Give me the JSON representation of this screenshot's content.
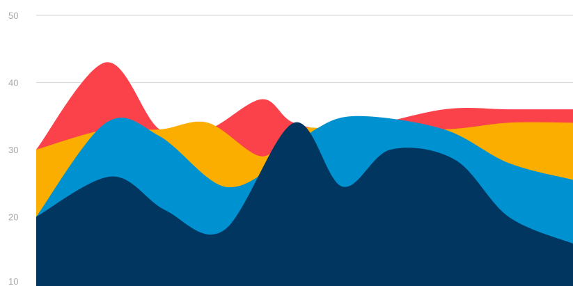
{
  "chart_data": {
    "type": "area",
    "title": "",
    "xlabel": "",
    "ylabel": "",
    "ylim": [
      10,
      50
    ],
    "yticks": [
      10,
      20,
      30,
      40,
      50
    ],
    "grid": true,
    "legend": "none",
    "series": [
      {
        "color": "#fb424b",
        "points": [
          [
            0.0,
            30
          ],
          [
            0.13,
            43
          ],
          [
            0.23,
            33
          ],
          [
            0.32,
            33
          ],
          [
            0.42,
            37.5
          ],
          [
            0.48,
            34
          ],
          [
            0.58,
            33
          ],
          [
            0.76,
            36
          ],
          [
            0.88,
            36
          ],
          [
            1.0,
            36
          ]
        ]
      },
      {
        "color": "#fcae00",
        "points": [
          [
            0.0,
            30
          ],
          [
            0.13,
            33
          ],
          [
            0.23,
            33
          ],
          [
            0.32,
            34
          ],
          [
            0.42,
            29
          ],
          [
            0.48,
            33
          ],
          [
            0.58,
            33
          ],
          [
            0.76,
            33
          ],
          [
            0.88,
            34
          ],
          [
            1.0,
            34
          ]
        ]
      },
      {
        "color": "#0092d0",
        "points": [
          [
            0.0,
            20
          ],
          [
            0.13,
            34
          ],
          [
            0.23,
            32
          ],
          [
            0.35,
            24.5
          ],
          [
            0.45,
            28
          ],
          [
            0.52,
            33
          ],
          [
            0.6,
            35
          ],
          [
            0.76,
            33
          ],
          [
            0.88,
            28
          ],
          [
            1.0,
            25.5
          ]
        ]
      },
      {
        "color": "#003660",
        "points": [
          [
            0.0,
            20
          ],
          [
            0.14,
            26
          ],
          [
            0.24,
            21
          ],
          [
            0.35,
            18
          ],
          [
            0.48,
            34
          ],
          [
            0.57,
            24.5
          ],
          [
            0.66,
            30
          ],
          [
            0.78,
            28.5
          ],
          [
            0.88,
            20
          ],
          [
            1.0,
            16
          ]
        ]
      }
    ]
  }
}
